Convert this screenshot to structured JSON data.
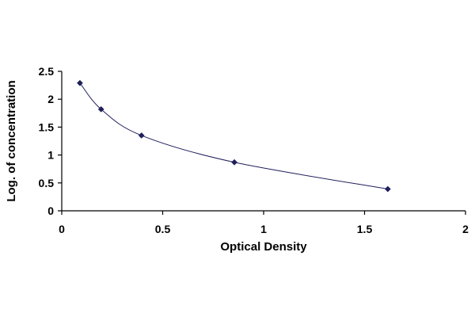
{
  "chart_data": {
    "type": "scatter",
    "title": "",
    "xlabel": "Optical Density",
    "ylabel": "Log. of concentration",
    "xlim": [
      0,
      2
    ],
    "ylim": [
      0,
      2.5
    ],
    "x_ticks": [
      "0",
      "0.5",
      "1",
      "1.5",
      "2"
    ],
    "y_ticks": [
      "0",
      "0.5",
      "1",
      "1.5",
      "2",
      "2.5"
    ],
    "grid": false,
    "legend": "none",
    "smooth_line": true,
    "colors": {
      "marker": "#1f1f5c",
      "line": "#1f1f5c",
      "axis": "#000000"
    },
    "series": [
      {
        "x": [
          0.09,
          0.195,
          0.395,
          0.855,
          1.615
        ],
        "y": [
          2.29,
          1.82,
          1.35,
          0.87,
          0.39
        ]
      }
    ]
  }
}
